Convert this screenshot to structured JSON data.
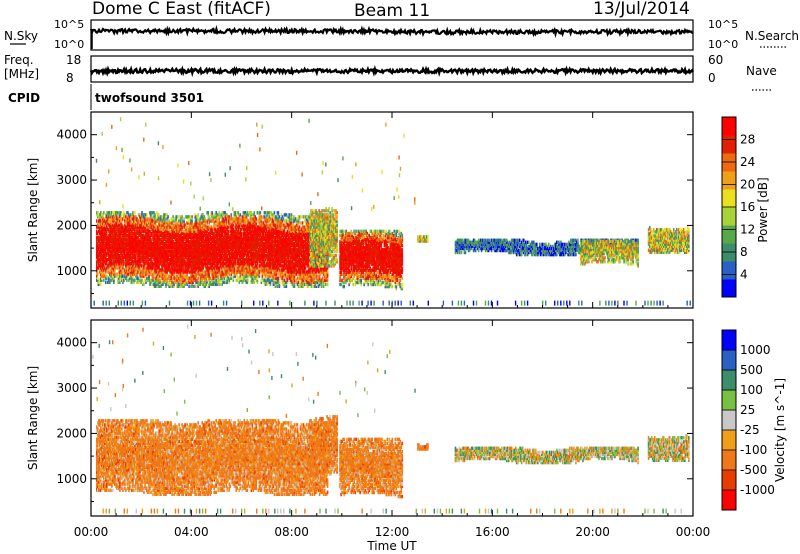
{
  "header": {
    "station": "Dome C East (fitACF)",
    "beam": "Beam 11",
    "date": "13/Jul/2014"
  },
  "top_panels": {
    "nsky_label": "N.Sky",
    "nsky_ticks": [
      "10^5",
      "10^0"
    ],
    "nsearch_label": "N.Search",
    "freq_label_1": "Freq.",
    "freq_label_2": "[MHz]",
    "freq_ticks": [
      "18",
      "8"
    ],
    "nave_ticks": [
      "60",
      "0"
    ],
    "nave_label": "Nave",
    "cpid_label": "CPID",
    "cpid_value": "twofsound 3501"
  },
  "chart_data": [
    {
      "type": "heatmap",
      "panel": "power",
      "ylabel": "Slant Range [km]",
      "xlabel": "Time UT",
      "x_ticks": [
        "00:00",
        "04:00",
        "08:00",
        "12:00",
        "16:00",
        "20:00",
        "00:00"
      ],
      "x_range_hours": [
        0,
        24
      ],
      "y_ticks": [
        1000,
        2000,
        3000,
        4000
      ],
      "y_range_km": [
        180,
        4500
      ],
      "colorbar": {
        "label": "Power [dB]",
        "ticks": [
          "28",
          "24",
          "20",
          "16",
          "12",
          "8",
          "4"
        ],
        "colors": [
          "#0000ff",
          "#2a5fc4",
          "#3d8c6a",
          "#58a848",
          "#a8d23a",
          "#e8e020",
          "#f0a018",
          "#ee6a10",
          "#e02000",
          "#ff0000"
        ]
      },
      "echo_regions": [
        {
          "t0": 0.2,
          "t1": 9.4,
          "r0": 650,
          "r1": 2300,
          "level": "high"
        },
        {
          "t0": 8.7,
          "t1": 9.8,
          "r0": 1100,
          "r1": 2400,
          "level": "mid"
        },
        {
          "t0": 9.9,
          "t1": 12.4,
          "r0": 600,
          "r1": 1900,
          "level": "high"
        },
        {
          "t0": 13.0,
          "t1": 13.4,
          "r0": 1650,
          "r1": 1850,
          "level": "mid"
        },
        {
          "t0": 14.5,
          "t1": 21.8,
          "r0": 1350,
          "r1": 1700,
          "level": "low"
        },
        {
          "t0": 19.5,
          "t1": 21.8,
          "r0": 1100,
          "r1": 1650,
          "level": "mid"
        },
        {
          "t0": 22.2,
          "t1": 23.8,
          "r0": 1400,
          "r1": 2000,
          "level": "mid"
        }
      ]
    },
    {
      "type": "heatmap",
      "panel": "velocity",
      "ylabel": "Slant Range [km]",
      "xlabel": "Time UT",
      "x_ticks": [
        "00:00",
        "04:00",
        "08:00",
        "12:00",
        "16:00",
        "20:00",
        "00:00"
      ],
      "x_range_hours": [
        0,
        24
      ],
      "y_ticks": [
        1000,
        2000,
        3000,
        4000
      ],
      "y_range_km": [
        180,
        4500
      ],
      "colorbar": {
        "label": "Velocity [m s^-1]",
        "ticks": [
          "1000",
          "500",
          "100",
          "25",
          "-25",
          "-100",
          "-500",
          "-1000"
        ],
        "colors": [
          "#ff0000",
          "#e83c00",
          "#f07818",
          "#f0a018",
          "#c8c8c8",
          "#78c040",
          "#3d8c6a",
          "#2a5fc4",
          "#0000ff"
        ]
      },
      "echo_regions": [
        {
          "t0": 0.2,
          "t1": 9.4,
          "r0": 650,
          "r1": 2300,
          "level": "neg"
        },
        {
          "t0": 8.7,
          "t1": 9.8,
          "r0": 1100,
          "r1": 2400,
          "level": "neg"
        },
        {
          "t0": 9.9,
          "t1": 12.4,
          "r0": 600,
          "r1": 1900,
          "level": "neg"
        },
        {
          "t0": 13.0,
          "t1": 13.4,
          "r0": 1650,
          "r1": 1850,
          "level": "neg"
        },
        {
          "t0": 14.5,
          "t1": 21.8,
          "r0": 1350,
          "r1": 1700,
          "level": "mix"
        },
        {
          "t0": 22.2,
          "t1": 23.8,
          "r0": 1400,
          "r1": 2000,
          "level": "mix"
        }
      ]
    }
  ]
}
